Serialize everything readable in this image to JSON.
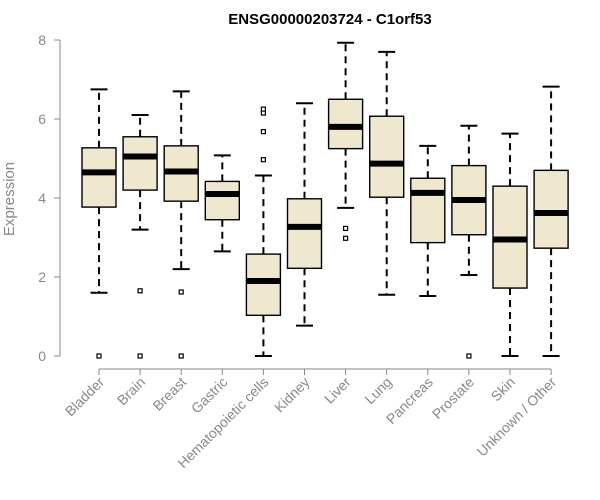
{
  "chart_data": {
    "type": "boxplot",
    "title": "ENSG00000203724 - C1orf53",
    "xlabel": "",
    "ylabel": "Expression",
    "ylim": [
      0,
      8
    ],
    "yticks": [
      "0",
      "2",
      "4",
      "6",
      "8"
    ],
    "grid": false,
    "colors": {
      "box_fill": "#efe8cf",
      "stroke": "#000000",
      "axis_text": "#888888"
    },
    "categories": [
      "Bladder",
      "Brain",
      "Breast",
      "Gastric",
      "Hematopoietic cells",
      "Kidney",
      "Liver",
      "Lung",
      "Pancreas",
      "Prostate",
      "Skin",
      "Unknown / Other"
    ],
    "boxes": [
      {
        "whisker_low": 1.6,
        "q1": 3.77,
        "median": 4.65,
        "q3": 5.27,
        "whisker_high": 6.75,
        "outliers": [
          0.0
        ]
      },
      {
        "whisker_low": 3.2,
        "q1": 4.2,
        "median": 5.05,
        "q3": 5.55,
        "whisker_high": 6.1,
        "outliers": [
          1.65,
          0.0
        ]
      },
      {
        "whisker_low": 2.2,
        "q1": 3.92,
        "median": 4.67,
        "q3": 5.32,
        "whisker_high": 6.7,
        "outliers": [
          1.62,
          0.0
        ]
      },
      {
        "whisker_low": 2.65,
        "q1": 3.45,
        "median": 4.1,
        "q3": 4.42,
        "whisker_high": 5.08,
        "outliers": []
      },
      {
        "whisker_low": 0.0,
        "q1": 1.03,
        "median": 1.9,
        "q3": 2.58,
        "whisker_high": 4.57,
        "outliers": [
          6.25,
          6.15,
          5.68,
          4.97
        ]
      },
      {
        "whisker_low": 0.77,
        "q1": 2.22,
        "median": 3.27,
        "q3": 3.98,
        "whisker_high": 6.4,
        "outliers": []
      },
      {
        "whisker_low": 3.75,
        "q1": 5.25,
        "median": 5.8,
        "q3": 6.5,
        "whisker_high": 7.93,
        "outliers": [
          3.23,
          2.98
        ]
      },
      {
        "whisker_low": 1.55,
        "q1": 4.02,
        "median": 4.87,
        "q3": 6.07,
        "whisker_high": 7.7,
        "outliers": []
      },
      {
        "whisker_low": 1.52,
        "q1": 2.87,
        "median": 4.13,
        "q3": 4.5,
        "whisker_high": 5.32,
        "outliers": []
      },
      {
        "whisker_low": 2.05,
        "q1": 3.07,
        "median": 3.95,
        "q3": 4.82,
        "whisker_high": 5.83,
        "outliers": [
          0.0
        ]
      },
      {
        "whisker_low": 0.0,
        "q1": 1.72,
        "median": 2.95,
        "q3": 4.3,
        "whisker_high": 5.63,
        "outliers": []
      },
      {
        "whisker_low": 0.0,
        "q1": 2.73,
        "median": 3.62,
        "q3": 4.7,
        "whisker_high": 6.82,
        "outliers": []
      }
    ]
  }
}
